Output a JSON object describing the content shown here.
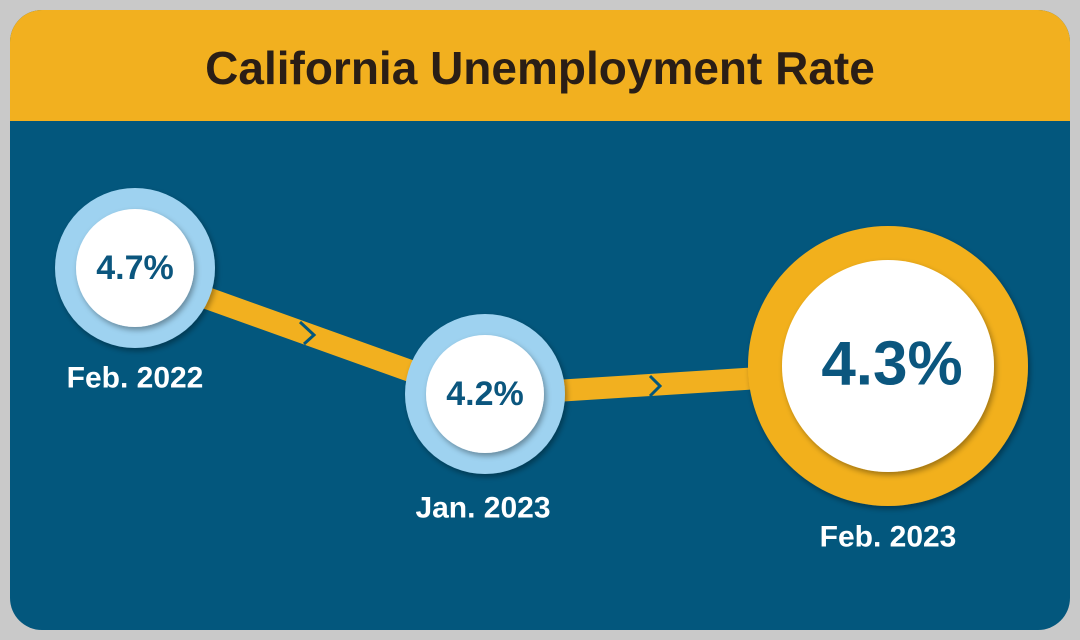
{
  "header": {
    "title": "California Unemployment Rate"
  },
  "points": [
    {
      "value": "4.7%",
      "label": "Feb. 2022"
    },
    {
      "value": "4.2%",
      "label": "Jan. 2023"
    },
    {
      "value": "4.3%",
      "label": "Feb. 2023"
    }
  ]
}
